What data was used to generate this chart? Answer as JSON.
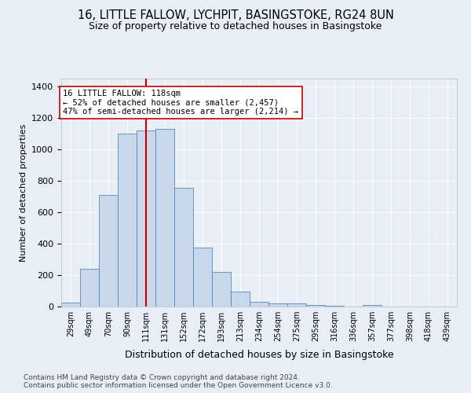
{
  "title_line1": "16, LITTLE FALLOW, LYCHPIT, BASINGSTOKE, RG24 8UN",
  "title_line2": "Size of property relative to detached houses in Basingstoke",
  "xlabel": "Distribution of detached houses by size in Basingstoke",
  "ylabel": "Number of detached properties",
  "footnote": "Contains HM Land Registry data © Crown copyright and database right 2024.\nContains public sector information licensed under the Open Government Licence v3.0.",
  "categories": [
    "29sqm",
    "49sqm",
    "70sqm",
    "90sqm",
    "111sqm",
    "131sqm",
    "152sqm",
    "172sqm",
    "193sqm",
    "213sqm",
    "234sqm",
    "254sqm",
    "275sqm",
    "295sqm",
    "316sqm",
    "336sqm",
    "357sqm",
    "377sqm",
    "398sqm",
    "418sqm",
    "439sqm"
  ],
  "values": [
    25,
    240,
    710,
    1100,
    1120,
    1130,
    755,
    375,
    220,
    95,
    28,
    20,
    18,
    12,
    5,
    0,
    8,
    0,
    0,
    0,
    0
  ],
  "bar_color": "#c8d8ea",
  "bar_edge_color": "#5588bb",
  "vline_index": 4,
  "vline_color": "#cc0000",
  "annotation_line1": "16 LITTLE FALLOW: 118sqm",
  "annotation_line2": "← 52% of detached houses are smaller (2,457)",
  "annotation_line3": "47% of semi-detached houses are larger (2,214) →",
  "ann_box_facecolor": "#ffffff",
  "ann_box_edgecolor": "#cc0000",
  "ylim": [
    0,
    1450
  ],
  "yticks": [
    0,
    200,
    400,
    600,
    800,
    1000,
    1200,
    1400
  ],
  "background_color": "#e8eef5",
  "grid_color": "#ffffff",
  "title_fontsize": 10.5,
  "subtitle_fontsize": 9,
  "ylabel_fontsize": 8,
  "xlabel_fontsize": 9,
  "xtick_fontsize": 7,
  "ytick_fontsize": 8,
  "ann_fontsize": 7.5,
  "footnote_fontsize": 6.5
}
